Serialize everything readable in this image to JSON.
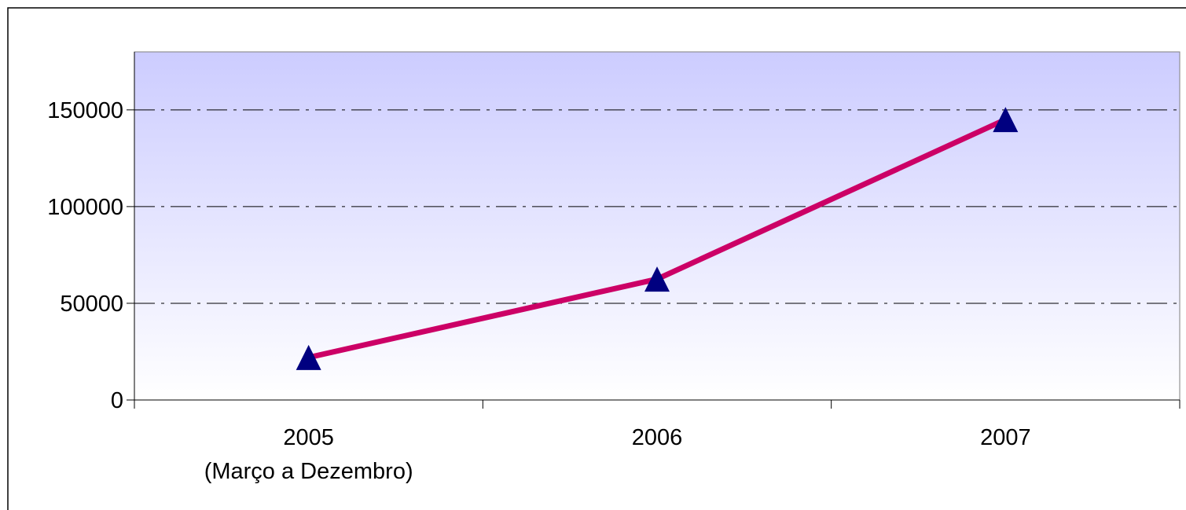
{
  "chart_data": {
    "type": "line",
    "categories": [
      "2005",
      "2006",
      "2007"
    ],
    "category_sublabels": [
      "(Março a Dezembro)",
      "",
      ""
    ],
    "series": [
      {
        "values": [
          22000,
          62500,
          145000
        ]
      }
    ],
    "title": "",
    "xlabel": "",
    "ylabel": "",
    "ylim": [
      0,
      180000
    ],
    "yticks": [
      0,
      50000,
      100000,
      150000
    ],
    "ytick_labels": [
      "0",
      "50000",
      "100000",
      "150000"
    ],
    "grid": true,
    "legend": "none",
    "colors": {
      "line": "#CC0066",
      "marker": "#000080",
      "plot_gradient_top": "#CCCCFF",
      "plot_gradient_bottom": "#FFFFFF",
      "gridline": "#000000",
      "axis": "#000000"
    },
    "marker_shape": "triangle"
  }
}
